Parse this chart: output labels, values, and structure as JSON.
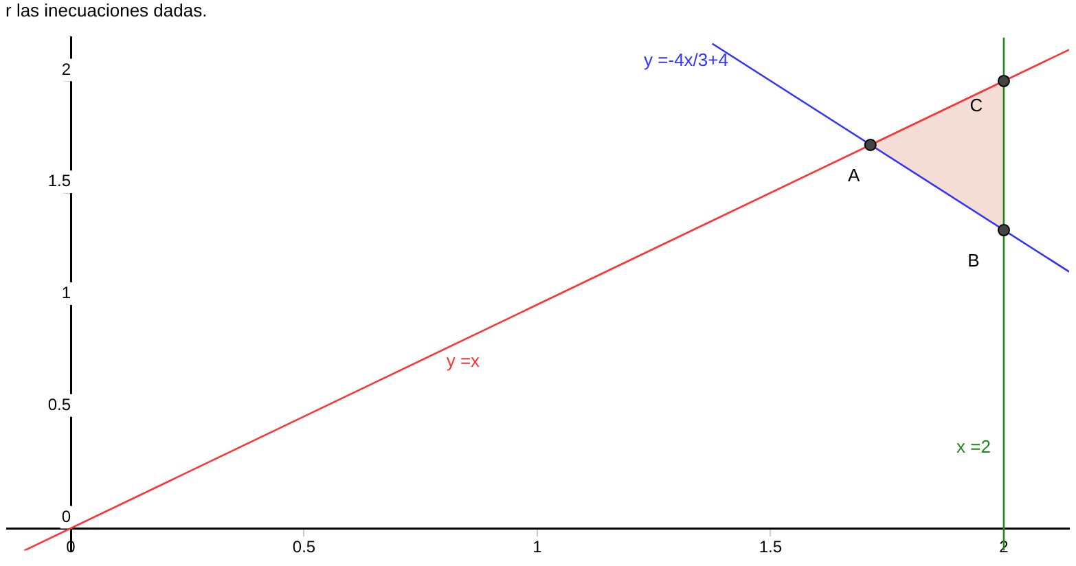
{
  "chart_data": {
    "type": "line",
    "xlim": [
      -0.137,
      2.14
    ],
    "ylim": [
      -0.1,
      2.195
    ],
    "xticks": [
      0,
      0.5,
      1,
      1.5,
      2
    ],
    "yticks": [
      0,
      0.5,
      1,
      1.5,
      2
    ],
    "grid": false,
    "legend": false,
    "marker": "none",
    "series": [
      {
        "type": "area",
        "color": "#f3ddd5",
        "x": [
          1.714,
          2,
          2
        ],
        "values": [
          1.714,
          2,
          1.333
        ]
      },
      {
        "name": "y =x",
        "color": "#ff3333",
        "x": [
          -0.1,
          2.14
        ],
        "values": [
          -0.1,
          2.14
        ]
      },
      {
        "name": "y =-4x/3+4",
        "color": "#3333ff",
        "x": [
          1.375,
          2.14
        ],
        "values": [
          2.167,
          1.147
        ]
      },
      {
        "name": "x =2",
        "color": "#228822",
        "x": [
          2,
          2
        ],
        "values": [
          -0.1,
          2.195
        ]
      },
      {
        "type": "scatter",
        "marker": "circle",
        "color": "#444444",
        "x": [
          1.714,
          2,
          2
        ],
        "values": [
          1.714,
          1.333,
          2
        ],
        "value_labels": [
          "A",
          "B",
          "C"
        ]
      }
    ],
    "annotations": [
      "r las inecuaciones dadas."
    ]
  }
}
